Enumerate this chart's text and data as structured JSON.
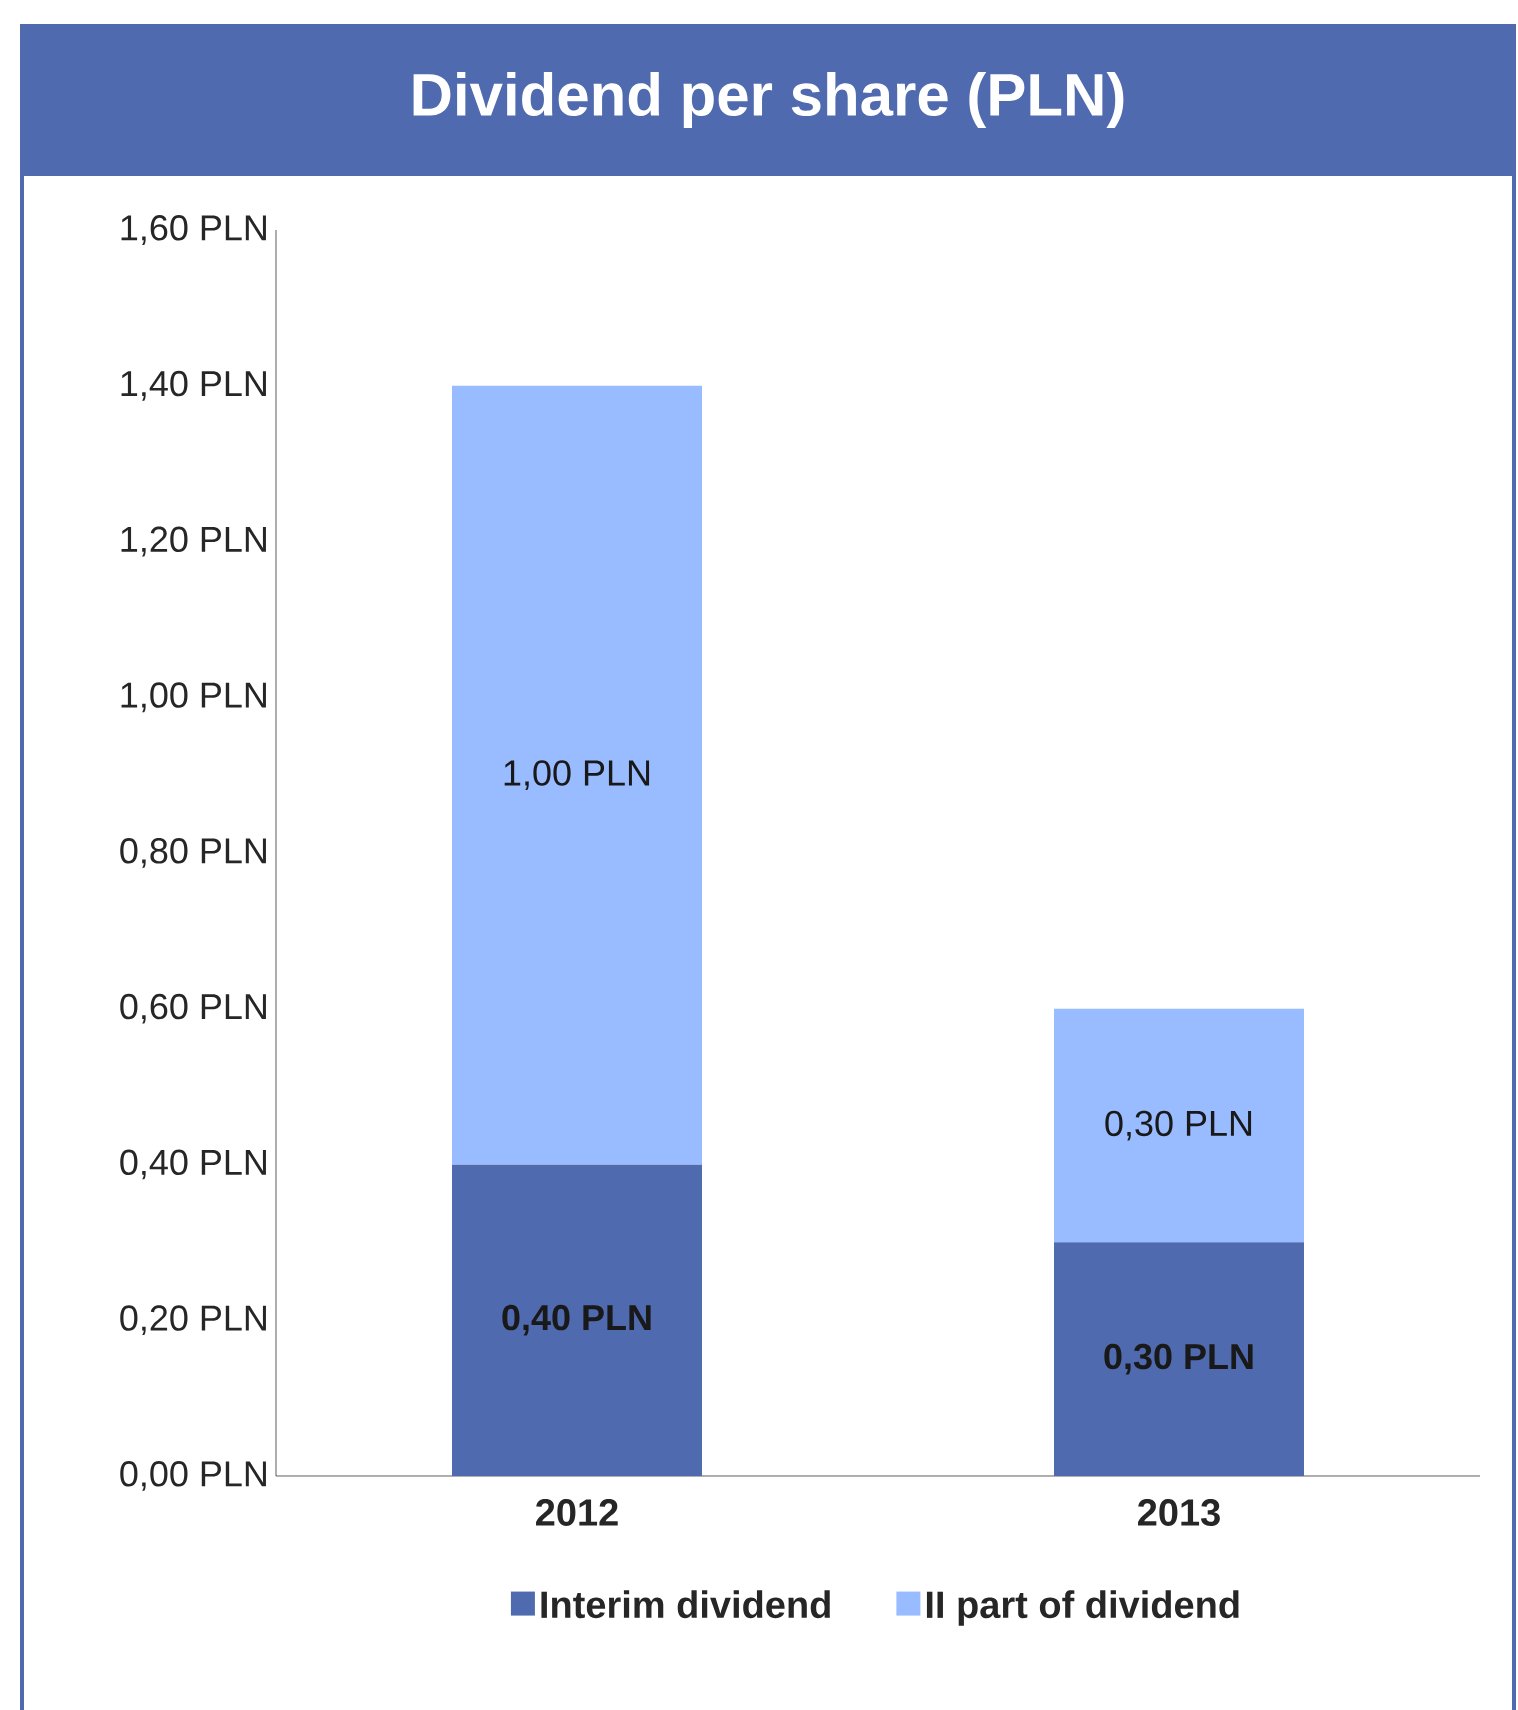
{
  "chart_data": {
    "type": "bar",
    "title": "Dividend per share (PLN)",
    "stacked": true,
    "legend": "bottom",
    "grid": false,
    "categories": [
      "2012",
      "2013"
    ],
    "series": [
      {
        "name": "Interim dividend",
        "color": "#4f6aae",
        "values": [
          0.4,
          0.3
        ],
        "value_labels": [
          "0,40 PLN",
          "0,30 PLN"
        ]
      },
      {
        "name": "II part of dividend",
        "color": "#99bbff",
        "values": [
          1.0,
          0.3
        ],
        "value_labels": [
          "1,00 PLN",
          "0,30 PLN"
        ]
      }
    ],
    "ylim": [
      0,
      1.6
    ],
    "yticks": [
      {
        "value": 0,
        "label": "0,00 PLN"
      },
      {
        "value": 0.2,
        "label": "0,20 PLN"
      },
      {
        "value": 0.4,
        "label": "0,40 PLN"
      },
      {
        "value": 0.6,
        "label": "0,60 PLN"
      },
      {
        "value": 0.8,
        "label": "0,80 PLN"
      },
      {
        "value": 1.0,
        "label": "1,00 PLN"
      },
      {
        "value": 1.2,
        "label": "1,20 PLN"
      },
      {
        "value": 1.4,
        "label": "1,40 PLN"
      },
      {
        "value": 1.6,
        "label": "1,60 PLN"
      }
    ]
  }
}
